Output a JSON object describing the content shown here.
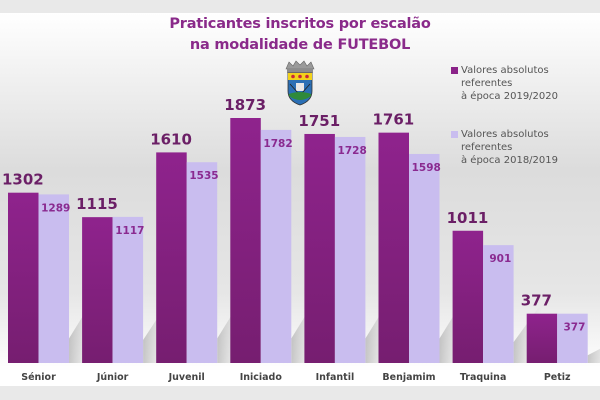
{
  "chart_data": {
    "type": "bar",
    "title": "Praticantes inscritos por escalão na modalidade de FUTEBOL",
    "title_lines": [
      "Praticantes inscritos por escalão",
      "na modalidade de FUTEBOL"
    ],
    "xlabel": "",
    "ylabel": "",
    "ylim": [
      0,
      1873
    ],
    "grid": false,
    "legend_position": "right",
    "categories": [
      "Sénior",
      "Júnior",
      "Juvenil",
      "Iniciado",
      "Infantil",
      "Benjamim",
      "Traquina",
      "Petiz"
    ],
    "series": [
      {
        "name": "Valores absolutos referentes à época 2019/2020",
        "legend_lines": [
          "Valores absolutos referentes",
          "à época 2019/2020"
        ],
        "color": "#8a2288",
        "values": [
          1302,
          1115,
          1610,
          1873,
          1751,
          1761,
          1011,
          377
        ]
      },
      {
        "name": "Valores absolutos referentes à época 2018/2019",
        "legend_lines": [
          "Valores absolutos referentes",
          "à época 2018/2019"
        ],
        "color": "#c9bdef",
        "values": [
          1289,
          1117,
          1535,
          1782,
          1728,
          1598,
          901,
          377
        ]
      }
    ]
  },
  "logo": {
    "icon": "municipal-coat-of-arms-icon"
  }
}
